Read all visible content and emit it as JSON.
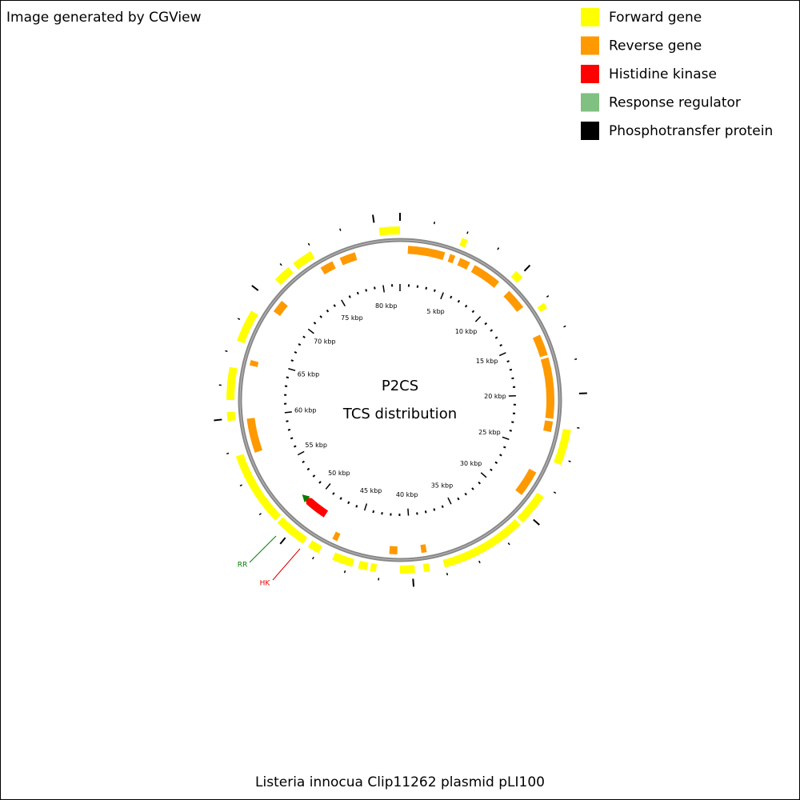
{
  "header": {
    "credit": "Image generated by CGView"
  },
  "legend": {
    "items": [
      {
        "label": "Forward gene",
        "color": "#ffff00"
      },
      {
        "label": "Reverse gene",
        "color": "#ff9900"
      },
      {
        "label": "Histidine kinase",
        "color": "#ff0000"
      },
      {
        "label": "Response regulator",
        "color": "#80c080"
      },
      {
        "label": "Phosphotransfer protein",
        "color": "#000000"
      }
    ]
  },
  "map": {
    "title": "P2CS",
    "subtitle": "TCS distribution",
    "ruler_labels": [
      "5 kbp",
      "10 kbp",
      "15 kbp",
      "20 kbp",
      "25 kbp",
      "30 kbp",
      "35 kbp",
      "40 kbp",
      "45 kbp",
      "50 kbp",
      "55 kbp",
      "60 kbp",
      "65 kbp",
      "70 kbp",
      "75 kbp",
      "80 kbp"
    ],
    "annotations": [
      {
        "label": "RR",
        "color": "#008000"
      },
      {
        "label": "HK",
        "color": "#e00000"
      }
    ]
  },
  "footer": {
    "title": "Listeria innocua Clip11262 plasmid pLI100"
  }
}
